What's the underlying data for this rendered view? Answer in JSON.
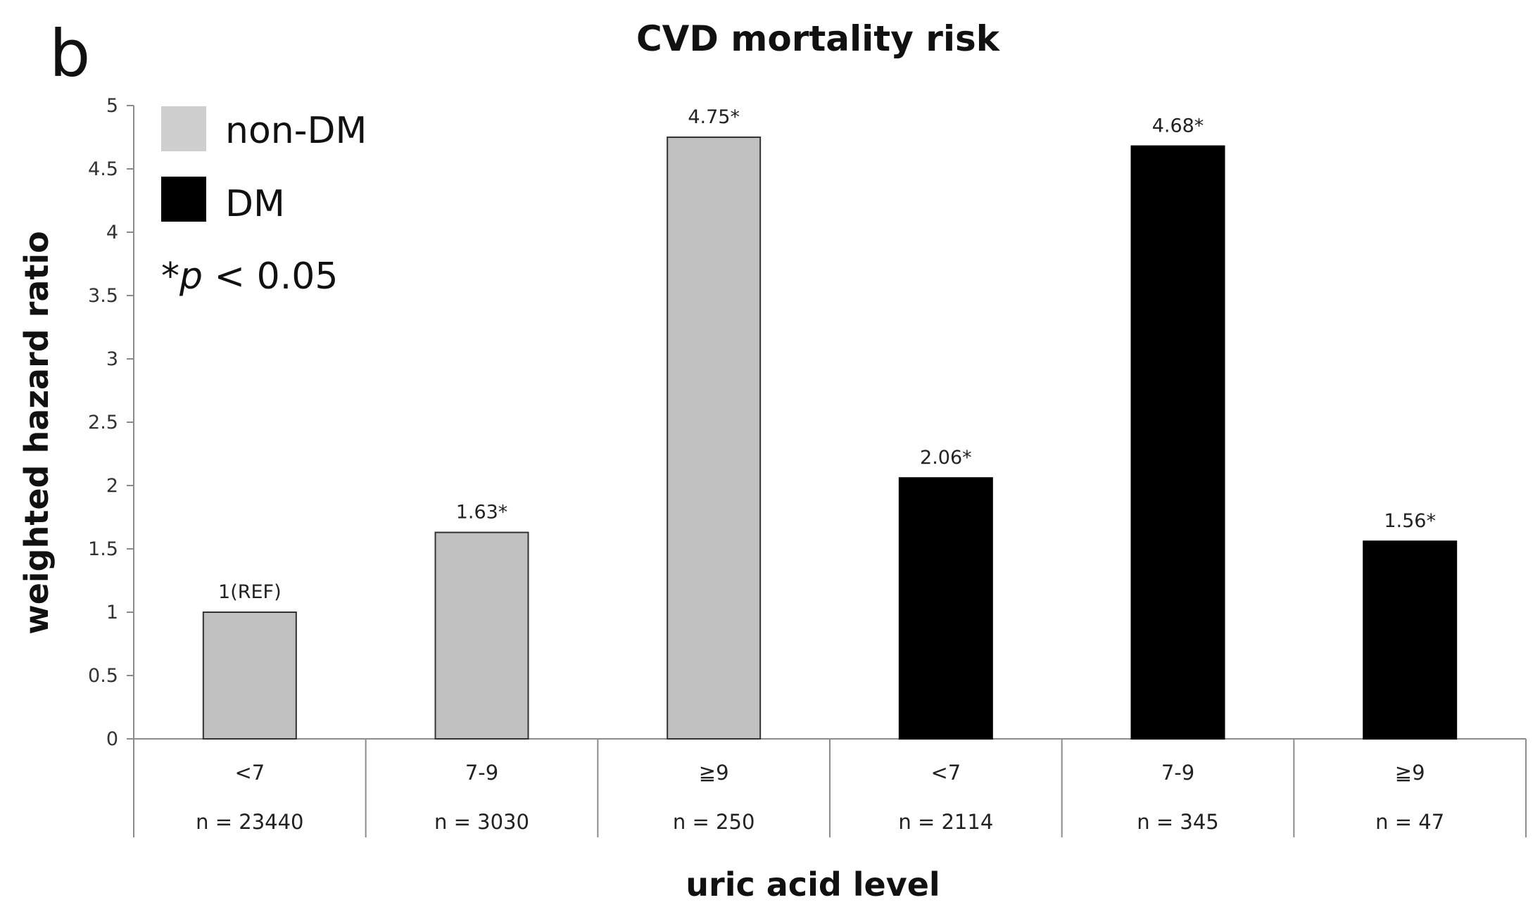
{
  "panel_letter": "b",
  "colors": {
    "non_dm": "#c0c0c0",
    "dm": "#000000",
    "axis": "#8c8c8c",
    "bar_border": "#333333"
  },
  "legend": [
    {
      "label": "non-DM",
      "color": "#cfcfcf"
    },
    {
      "label": "DM",
      "color": "#000000"
    }
  ],
  "significance_note": {
    "star": "*",
    "p": "p",
    "rest": " < 0.05"
  },
  "chart_data": {
    "type": "bar",
    "title": "CVD mortality risk",
    "xlabel": "uric acid level",
    "ylabel": "weighted hazard ratio",
    "ylim": [
      0,
      5
    ],
    "yticks": [
      "0",
      "0.5",
      "1",
      "1.5",
      "2",
      "2.5",
      "3",
      "3.5",
      "4",
      "4.5",
      "5"
    ],
    "grid": false,
    "legend_position": "top-left",
    "bars": [
      {
        "category": "<7",
        "n": "n = 23440",
        "group": "non-DM",
        "value": 1.0,
        "label": "1(REF)"
      },
      {
        "category": "7-9",
        "n": "n = 3030",
        "group": "non-DM",
        "value": 1.63,
        "label": "1.63*"
      },
      {
        "category": "≧9",
        "n": "n = 250",
        "group": "non-DM",
        "value": 4.75,
        "label": "4.75*"
      },
      {
        "category": "<7",
        "n": "n = 2114",
        "group": "DM",
        "value": 2.06,
        "label": "2.06*"
      },
      {
        "category": "7-9",
        "n": "n = 345",
        "group": "DM",
        "value": 4.68,
        "label": "4.68*"
      },
      {
        "category": "≧9",
        "n": "n = 47",
        "group": "DM",
        "value": 1.56,
        "label": "1.56*"
      }
    ]
  }
}
